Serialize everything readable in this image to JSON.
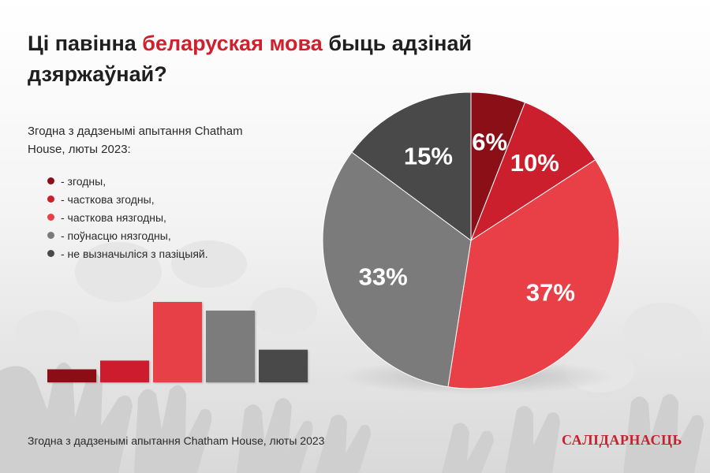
{
  "title": {
    "part1": "Ці павінна ",
    "highlight": "беларуская мова",
    "part2": " быць адзінай дзяржаўнай?"
  },
  "subtitle": "Згодна з дадзенымі апытання Chatham House, люты 2023:",
  "footer": "Згодна з дадзенымі апытання Chatham House, люты 2023",
  "logo": "САЛІДАРНАСЦЬ",
  "colors": {
    "accent": "#d0202e",
    "series": [
      "#8b0f17",
      "#cc1f2e",
      "#e84046",
      "#7b7b7b",
      "#494949"
    ]
  },
  "chart_data": {
    "type": "pie",
    "title": "Ці павінна беларуская мова быць адзінай дзяржаўнай?",
    "categories": [
      "- згодны,",
      "- часткова згодны,",
      "- часткова нязгодны,",
      "- поўнасцю нязгодны,",
      "- не вызначыліся з пазіцыяй."
    ],
    "values": [
      6,
      10,
      37,
      33,
      15
    ],
    "labels": [
      "6%",
      "10%",
      "37%",
      "33%",
      "15%"
    ],
    "unit": "%",
    "legend": "left"
  }
}
